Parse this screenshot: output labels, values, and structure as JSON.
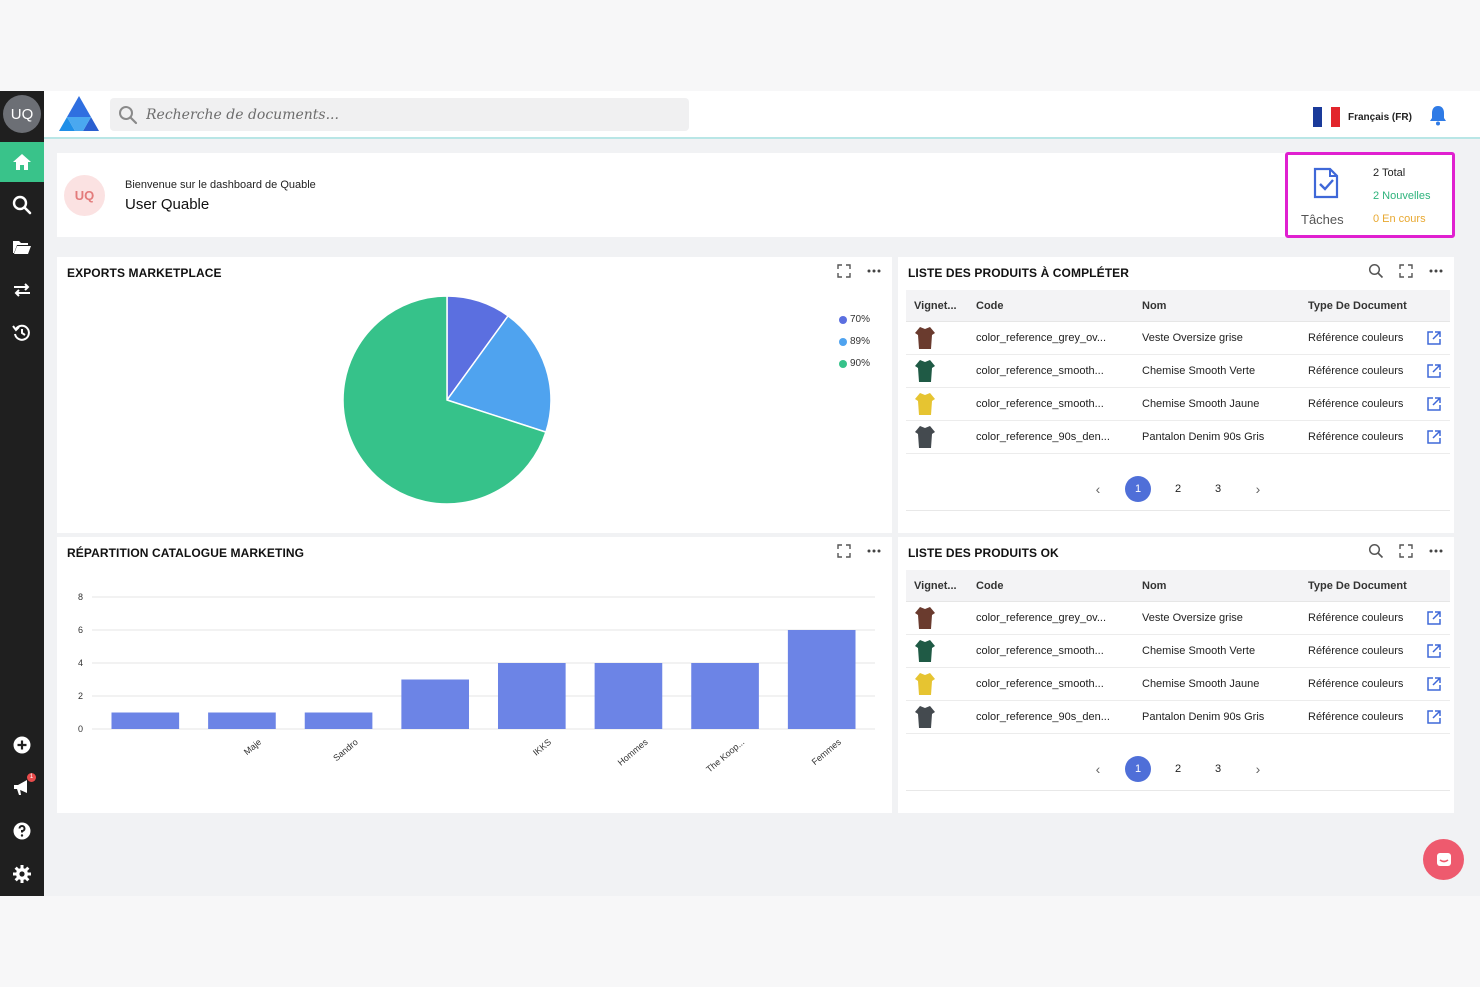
{
  "sidebar": {
    "avatar_initials": "UQ",
    "notifications_badge": "1",
    "items": [
      {
        "icon": "home-icon"
      },
      {
        "icon": "search-icon"
      },
      {
        "icon": "folder-open-icon"
      },
      {
        "icon": "transfer-icon"
      },
      {
        "icon": "history-icon"
      }
    ],
    "bottom_items": [
      {
        "icon": "plus-circle-icon"
      },
      {
        "icon": "megaphone-icon"
      },
      {
        "icon": "help-icon"
      },
      {
        "icon": "gear-icon"
      }
    ]
  },
  "topbar": {
    "search_placeholder": "Recherche de documents...",
    "language": "Français (FR)"
  },
  "welcome": {
    "avatar_initials": "UQ",
    "subtitle": "Bienvenue sur le dashboard de Quable",
    "user_name": "User Quable"
  },
  "tasks": {
    "label": "Tâches",
    "total": "2 Total",
    "new": "2 Nouvelles",
    "in_progress": "0 En cours"
  },
  "exports": {
    "title": "EXPORTS MARKETPLACE",
    "legend": [
      {
        "label": "70%",
        "color": "#5b6fe0"
      },
      {
        "label": "89%",
        "color": "#4fa3ef"
      },
      {
        "label": "90%",
        "color": "#36c28a"
      }
    ]
  },
  "catalogue": {
    "title": "RÉPARTITION CATALOGUE MARKETING"
  },
  "chart_data": [
    {
      "type": "pie",
      "title": "EXPORTS MARKETPLACE",
      "labels": [
        "70%",
        "89%",
        "90%"
      ],
      "values": [
        10,
        20,
        70
      ],
      "colors": [
        "#5b6fe0",
        "#4fa3ef",
        "#36c28a"
      ]
    },
    {
      "type": "bar",
      "title": "RÉPARTITION CATALOGUE MARKETING",
      "categories": [
        "",
        "Maje",
        "Sandro",
        "",
        "IKKS",
        "Hommes",
        "The Koop...",
        "Femmes"
      ],
      "values": [
        1,
        1,
        1,
        3,
        4,
        4,
        4,
        6
      ],
      "ylim": [
        0,
        8
      ],
      "yticks": [
        "0",
        "2",
        "4",
        "6",
        "8"
      ],
      "color": "#6c84e6"
    }
  ],
  "table_columns": {
    "thumb": "Vignet...",
    "code": "Code",
    "nom": "Nom",
    "type": "Type De Document"
  },
  "tables": [
    {
      "title": "LISTE DES PRODUITS À COMPLÉTER",
      "rows": [
        {
          "code": "color_reference_grey_ov...",
          "nom": "Veste Oversize grise",
          "type": "Référence couleurs",
          "thumb_color": "#6a3b2e"
        },
        {
          "code": "color_reference_smooth...",
          "nom": "Chemise Smooth Verte",
          "type": "Référence couleurs",
          "thumb_color": "#1f5a45"
        },
        {
          "code": "color_reference_smooth...",
          "nom": "Chemise Smooth Jaune",
          "type": "Référence couleurs",
          "thumb_color": "#e6c431"
        },
        {
          "code": "color_reference_90s_den...",
          "nom": "Pantalon Denim 90s Gris",
          "type": "Référence couleurs",
          "thumb_color": "#444a4f"
        }
      ],
      "pages": [
        "1",
        "2",
        "3"
      ],
      "current_page": "1"
    },
    {
      "title": "LISTE DES PRODUITS OK",
      "rows": [
        {
          "code": "color_reference_grey_ov...",
          "nom": "Veste Oversize grise",
          "type": "Référence couleurs",
          "thumb_color": "#6a3b2e"
        },
        {
          "code": "color_reference_smooth...",
          "nom": "Chemise Smooth Verte",
          "type": "Référence couleurs",
          "thumb_color": "#1f5a45"
        },
        {
          "code": "color_reference_smooth...",
          "nom": "Chemise Smooth Jaune",
          "type": "Référence couleurs",
          "thumb_color": "#e6c431"
        },
        {
          "code": "color_reference_90s_den...",
          "nom": "Pantalon Denim 90s Gris",
          "type": "Référence couleurs",
          "thumb_color": "#444a4f"
        }
      ],
      "pages": [
        "1",
        "2",
        "3"
      ],
      "current_page": "1"
    }
  ]
}
